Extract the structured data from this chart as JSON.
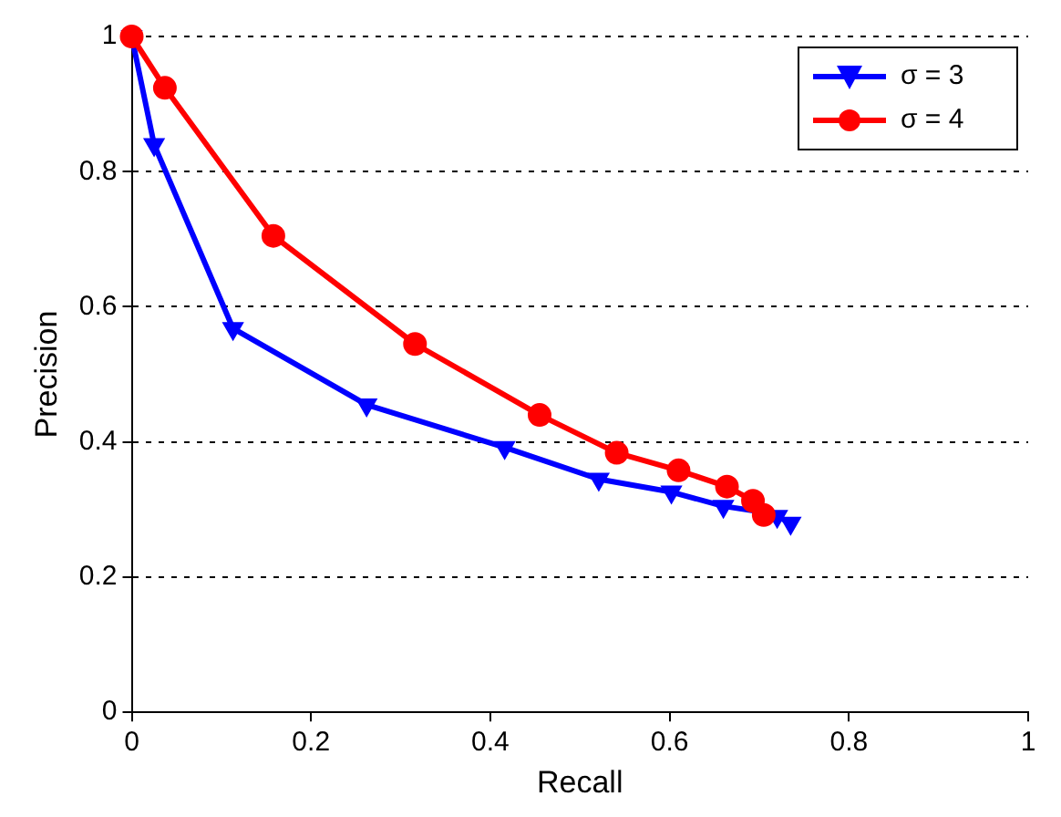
{
  "chart_data": {
    "type": "line",
    "xlabel": "Recall",
    "ylabel": "Precision",
    "xlim": [
      0,
      1
    ],
    "ylim": [
      0,
      1
    ],
    "xticks": [
      0,
      0.2,
      0.4,
      0.6,
      0.8,
      1
    ],
    "yticks": [
      0,
      0.2,
      0.4,
      0.6,
      0.8,
      1
    ],
    "grid": "y",
    "legend": "top right",
    "line_style": "solid",
    "series": [
      {
        "name": "σ = 3",
        "color": "#0000ff",
        "marker": "triangle",
        "x": [
          0,
          0.025,
          0.113,
          0.262,
          0.416,
          0.521,
          0.602,
          0.66,
          0.7,
          0.72,
          0.735
        ],
        "values": [
          1,
          0.84,
          0.568,
          0.455,
          0.392,
          0.345,
          0.326,
          0.305,
          0.297,
          0.29,
          0.28
        ]
      },
      {
        "name": "σ = 4",
        "color": "#ff0000",
        "marker": "circle",
        "x": [
          0,
          0.037,
          0.158,
          0.316,
          0.455,
          0.541,
          0.61,
          0.664,
          0.693,
          0.705
        ],
        "values": [
          1,
          0.924,
          0.705,
          0.545,
          0.44,
          0.384,
          0.358,
          0.334,
          0.313,
          0.292
        ]
      }
    ]
  }
}
